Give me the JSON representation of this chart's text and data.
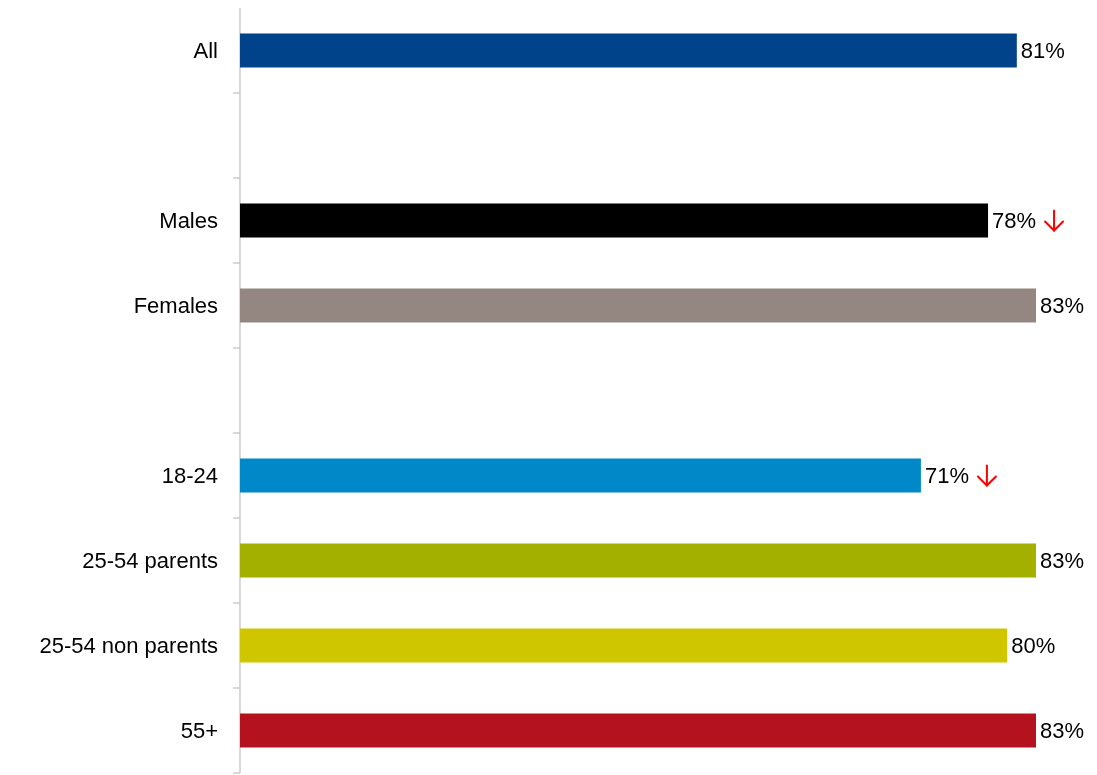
{
  "chart_data": {
    "type": "bar",
    "orientation": "horizontal",
    "categories": [
      "All",
      null,
      "Males",
      "Females",
      null,
      "18-24",
      "25-54 parents",
      "25-54 non parents",
      "55+"
    ],
    "values": [
      81,
      null,
      78,
      83,
      null,
      71,
      83,
      80,
      83
    ],
    "colors": [
      "#00438a",
      null,
      "#000000",
      "#948781",
      null,
      "#0088c8",
      "#a3b000",
      "#cfc600",
      "#b5121f"
    ],
    "value_labels": [
      "81%",
      null,
      "78%",
      "83%",
      null,
      "71%",
      "83%",
      "80%",
      "83%"
    ],
    "grid": false
  }
}
